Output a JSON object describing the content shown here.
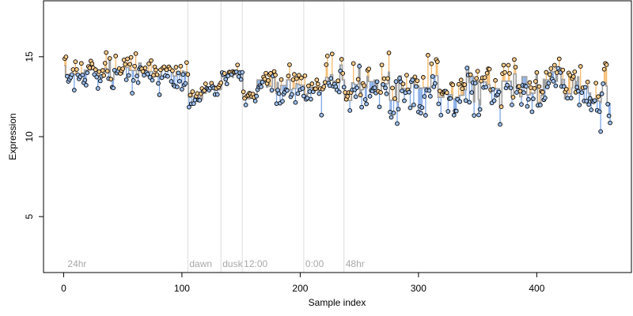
{
  "chart_data": {
    "type": "scatter",
    "xlabel": "Sample index",
    "ylabel": "Expression",
    "xlim": [
      -17,
      480
    ],
    "ylim": [
      1.5,
      18.5
    ],
    "x_ticks": [
      0,
      100,
      200,
      300,
      400
    ],
    "y_ticks": [
      5,
      10,
      15
    ],
    "grid": false,
    "legend": "none",
    "colors": {
      "background": "#ffffff",
      "fitted_line": "#a0a0a0",
      "residual_above": "#f5b969",
      "residual_below": "#7ea7e6",
      "point_fill_above": "#ffcd8a",
      "point_fill_below": "#9dc0ef",
      "point_edge": "#000000",
      "divider": "#dcdcdc",
      "annotation_text": "#a8a8a8"
    },
    "phase_markers": [
      {
        "label": "24hr",
        "x": 2
      },
      {
        "label": "dawn",
        "x": 105
      },
      {
        "label": "dusk",
        "x": 133
      },
      {
        "label": "12:00",
        "x": 151
      },
      {
        "label": "0:00",
        "x": 203
      },
      {
        "label": "48hr",
        "x": 237
      }
    ],
    "segments": [
      {
        "start": 1,
        "end": 105,
        "fit": 14.0,
        "fit_jitter": 0.3,
        "spread": 0.5
      },
      {
        "start": 106,
        "end": 120,
        "fit": 12.6,
        "fit_jitter": 0.15,
        "spread": 0.3
      },
      {
        "start": 121,
        "end": 133,
        "fit": 12.9,
        "fit_jitter": 0.15,
        "spread": 0.3
      },
      {
        "start": 134,
        "end": 151,
        "fit": 13.9,
        "fit_jitter": 0.2,
        "spread": 0.2
      },
      {
        "start": 152,
        "end": 162,
        "fit": 12.4,
        "fit_jitter": 0.1,
        "spread": 0.25
      },
      {
        "start": 163,
        "end": 203,
        "fit": 13.3,
        "fit_jitter": 0.3,
        "spread": 0.5
      },
      {
        "start": 204,
        "end": 220,
        "fit": 12.8,
        "fit_jitter": 0.3,
        "spread": 0.5
      },
      {
        "start": 221,
        "end": 237,
        "fit": 13.4,
        "fit_jitter": 0.35,
        "spread": 0.5
      },
      {
        "start": 238,
        "end": 462,
        "fit": 13.0,
        "fit_jitter": 0.55,
        "spread": 0.7
      }
    ],
    "n_points": 462,
    "random_seed": 7
  }
}
